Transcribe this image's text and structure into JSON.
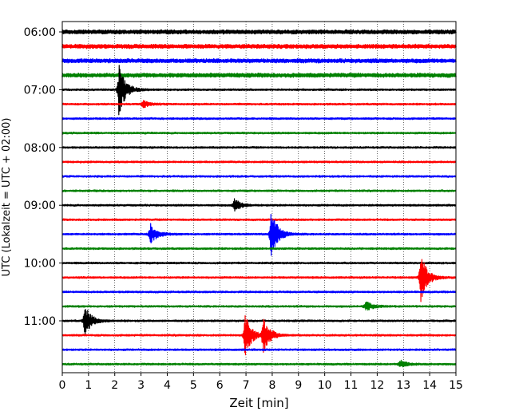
{
  "chart_data": {
    "type": "line",
    "title": "",
    "xlabel": "Zeit  [min]",
    "ylabel": "UTC (Lokalzeit = UTC + 02:00)",
    "xlim": [
      0,
      15
    ],
    "x_ticks": [
      0,
      1,
      2,
      3,
      4,
      5,
      6,
      7,
      8,
      9,
      10,
      11,
      12,
      13,
      14,
      15
    ],
    "x_tick_labels": [
      "0",
      "1",
      "2",
      "3",
      "4",
      "5",
      "6",
      "7",
      "8",
      "9",
      "10",
      "11",
      "12",
      "13",
      "14",
      "15"
    ],
    "y_tick_labels": [
      "06:00",
      "07:00",
      "08:00",
      "09:00",
      "10:00",
      "11:00"
    ],
    "y_tick_traces": [
      0,
      4,
      8,
      12,
      16,
      20
    ],
    "trace_minutes": 15,
    "grid": {
      "x": true,
      "style": "dotted"
    },
    "series_colors": [
      "#000000",
      "#ff0000",
      "#0000ff",
      "#008000"
    ],
    "traces": [
      {
        "start": "06:00",
        "color": "#000000",
        "events": []
      },
      {
        "start": "06:15",
        "color": "#ff0000",
        "events": []
      },
      {
        "start": "06:30",
        "color": "#0000ff",
        "events": []
      },
      {
        "start": "06:45",
        "color": "#008000",
        "events": []
      },
      {
        "start": "07:00",
        "color": "#000000",
        "events": [
          {
            "t": 2.2,
            "amp": 1.0
          }
        ]
      },
      {
        "start": "07:15",
        "color": "#ff0000",
        "events": [
          {
            "t": 3.1,
            "amp": 0.15
          }
        ]
      },
      {
        "start": "07:30",
        "color": "#0000ff",
        "events": []
      },
      {
        "start": "07:45",
        "color": "#008000",
        "events": []
      },
      {
        "start": "08:00",
        "color": "#000000",
        "events": []
      },
      {
        "start": "08:15",
        "color": "#ff0000",
        "events": []
      },
      {
        "start": "08:30",
        "color": "#0000ff",
        "events": []
      },
      {
        "start": "08:45",
        "color": "#008000",
        "events": []
      },
      {
        "start": "09:00",
        "color": "#000000",
        "events": [
          {
            "t": 6.6,
            "amp": 0.25
          }
        ]
      },
      {
        "start": "09:15",
        "color": "#ff0000",
        "events": []
      },
      {
        "start": "09:30",
        "color": "#0000ff",
        "events": [
          {
            "t": 3.4,
            "amp": 0.4
          },
          {
            "t": 8.0,
            "amp": 1.0
          }
        ]
      },
      {
        "start": "09:45",
        "color": "#008000",
        "events": []
      },
      {
        "start": "10:00",
        "color": "#000000",
        "events": []
      },
      {
        "start": "10:15",
        "color": "#ff0000",
        "events": [
          {
            "t": 13.7,
            "amp": 0.9
          }
        ]
      },
      {
        "start": "10:30",
        "color": "#0000ff",
        "events": []
      },
      {
        "start": "10:45",
        "color": "#008000",
        "events": [
          {
            "t": 11.6,
            "amp": 0.2
          }
        ]
      },
      {
        "start": "11:00",
        "color": "#000000",
        "events": [
          {
            "t": 0.9,
            "amp": 0.6
          }
        ]
      },
      {
        "start": "11:15",
        "color": "#ff0000",
        "events": [
          {
            "t": 7.0,
            "amp": 0.8
          },
          {
            "t": 7.7,
            "amp": 0.7
          }
        ]
      },
      {
        "start": "11:30",
        "color": "#0000ff",
        "events": []
      },
      {
        "start": "11:45",
        "color": "#008000",
        "events": [
          {
            "t": 12.9,
            "amp": 0.15
          }
        ]
      }
    ]
  }
}
